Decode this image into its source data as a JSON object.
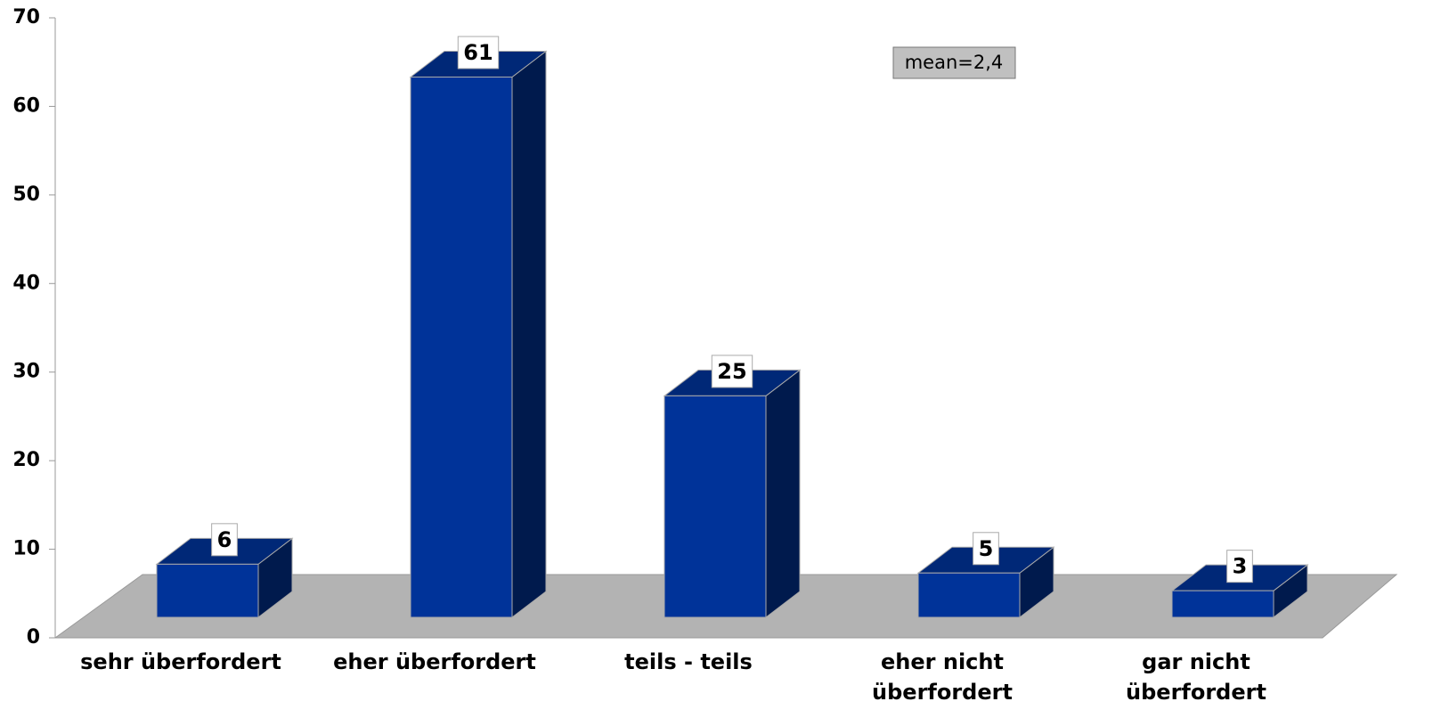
{
  "chart_data": {
    "type": "bar3d",
    "categories": [
      "sehr überfordert",
      "eher überfordert",
      "teils - teils",
      "eher nicht überfordert",
      "gar nicht überfordert"
    ],
    "values": [
      6,
      61,
      25,
      5,
      3
    ],
    "color": "#003399",
    "ylim": [
      0,
      70
    ],
    "yticks": [
      0,
      10,
      20,
      30,
      40,
      50,
      60,
      70
    ],
    "annotation": "mean=2,4"
  }
}
